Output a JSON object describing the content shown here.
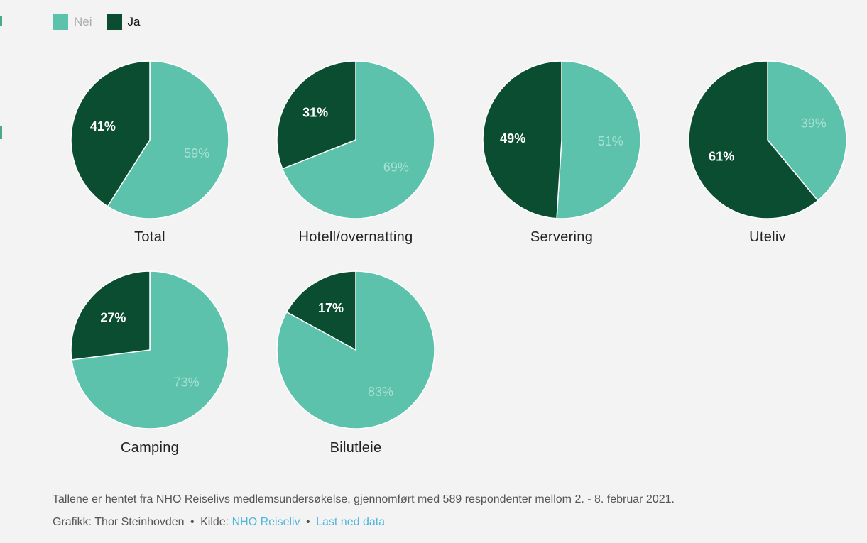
{
  "colors": {
    "nei": "#5cc2ab",
    "ja": "#0b4d31",
    "nei_label": "#a6e0d2",
    "ja_label": "#ffffff"
  },
  "legend": [
    {
      "label": "Nei",
      "color": "#5cc2ab",
      "text_color": "#a9aeac"
    },
    {
      "label": "Ja",
      "color": "#0b4d31",
      "text_color": "#111111"
    }
  ],
  "chart_data": {
    "type": "pie",
    "series": [
      "Nei",
      "Ja"
    ],
    "charts": [
      {
        "title": "Total",
        "nei": 59,
        "ja": 41,
        "nei_label": "59%",
        "ja_label": "41%"
      },
      {
        "title": "Hotell/overnatting",
        "nei": 69,
        "ja": 31,
        "nei_label": "69%",
        "ja_label": "31%"
      },
      {
        "title": "Servering",
        "nei": 51,
        "ja": 49,
        "nei_label": "51%",
        "ja_label": "49%"
      },
      {
        "title": "Uteliv",
        "nei": 39,
        "ja": 61,
        "nei_label": "39%",
        "ja_label": "61%"
      },
      {
        "title": "Camping",
        "nei": 73,
        "ja": 27,
        "nei_label": "73%",
        "ja_label": "27%"
      },
      {
        "title": "Bilutleie",
        "nei": 83,
        "ja": 17,
        "nei_label": "83%",
        "ja_label": "17%"
      }
    ]
  },
  "footer": {
    "note": "Tallene er hentet fra NHO Reiselivs medlemsundersøkelse, gjennomført med 589 respondenter mellom 2. - 8. februar 2021.",
    "credit_prefix": "Grafikk: Thor Steinhovden",
    "separator": "•",
    "source_prefix": "Kilde:",
    "source_link": "NHO Reiseliv",
    "download_link": "Last ned data"
  }
}
